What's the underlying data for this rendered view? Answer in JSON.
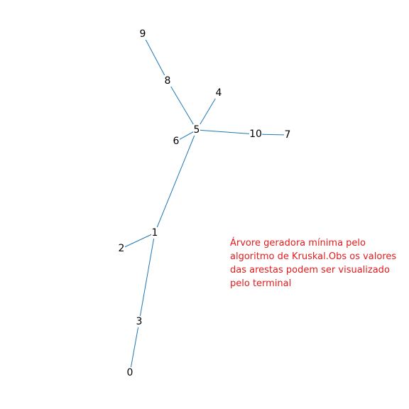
{
  "colors": {
    "edge": "#1f77b4",
    "label": "#000000",
    "caption": "#e41a1c"
  },
  "graph": {
    "nodes": [
      "0",
      "1",
      "2",
      "3",
      "4",
      "5",
      "6",
      "7",
      "8",
      "9",
      "10"
    ],
    "edges": [
      [
        "0",
        "3"
      ],
      [
        "3",
        "1"
      ],
      [
        "1",
        "2"
      ],
      [
        "1",
        "5"
      ],
      [
        "5",
        "6"
      ],
      [
        "5",
        "4"
      ],
      [
        "5",
        "8"
      ],
      [
        "8",
        "9"
      ],
      [
        "5",
        "10"
      ],
      [
        "10",
        "7"
      ]
    ]
  },
  "caption": {
    "lines": [
      "Árvore geradora mínima pelo",
      "algoritmo de Kruskal.Obs os valores",
      "das arestas podem ser visualizado",
      "pelo terminal"
    ]
  }
}
